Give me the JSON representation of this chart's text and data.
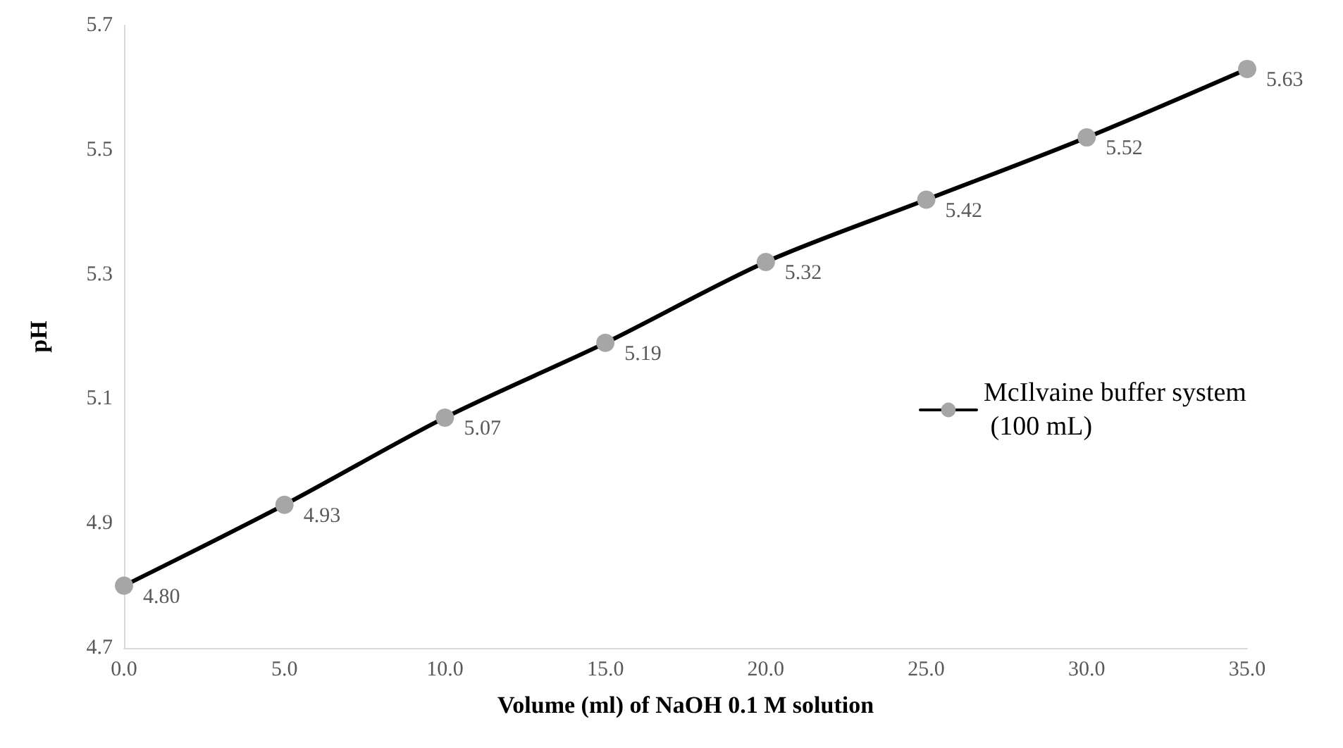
{
  "chart_data": {
    "type": "line",
    "xlabel": "Volume (ml) of NaOH 0.1 M solution",
    "ylabel": "pH",
    "x": [
      0,
      5,
      10,
      15,
      20,
      25,
      30,
      35
    ],
    "series": [
      {
        "name": "McIlvaine buffer system (100 mL)",
        "color": "#000000",
        "colors": [
          "#a6a6a6",
          "#a6a6a6",
          "#a6a6a6",
          "#a6a6a6",
          "#a6a6a6",
          "#a6a6a6",
          "#a6a6a6",
          "#a6a6a6"
        ],
        "values": [
          4.8,
          4.93,
          5.07,
          5.19,
          5.32,
          5.42,
          5.52,
          5.63
        ],
        "value_labels": [
          "4.80",
          "4.93",
          "5.07",
          "5.19",
          "5.32",
          "5.42",
          "5.52",
          "5.63"
        ]
      }
    ],
    "xlim": [
      0,
      35
    ],
    "xticks": [
      {
        "value": 0,
        "label": "0.0"
      },
      {
        "value": 5,
        "label": "5.0"
      },
      {
        "value": 10,
        "label": "10.0"
      },
      {
        "value": 15,
        "label": "15.0"
      },
      {
        "value": 20,
        "label": "20.0"
      },
      {
        "value": 25,
        "label": "25.0"
      },
      {
        "value": 30,
        "label": "30.0"
      },
      {
        "value": 35,
        "label": "35.0"
      }
    ],
    "ylim": [
      4.7,
      5.7
    ],
    "yticks": [
      4.7,
      4.9,
      5.1,
      5.3,
      5.5,
      5.7
    ],
    "legend": "right",
    "marker": "circle",
    "line_style": "solid"
  }
}
